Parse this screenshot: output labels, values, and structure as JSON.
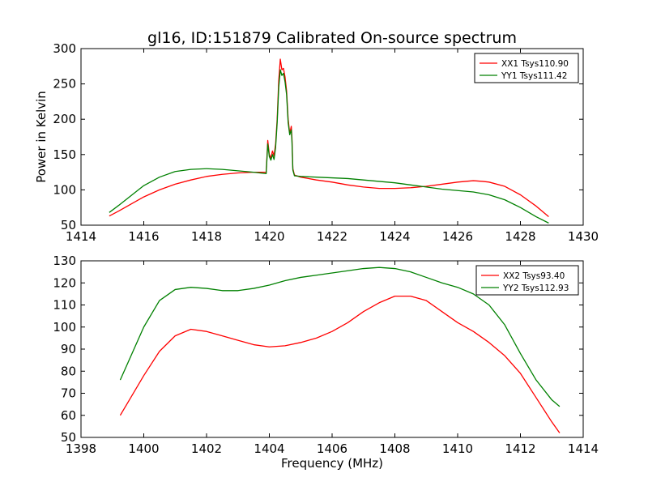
{
  "chart_data": [
    {
      "type": "line",
      "title": "gl16, ID:151879 Calibrated On-source spectrum",
      "xlabel": "",
      "ylabel": "Power in Kelvin",
      "xlim": [
        1414,
        1430
      ],
      "ylim": [
        50,
        300
      ],
      "xticks": [
        1414,
        1416,
        1418,
        1420,
        1422,
        1424,
        1426,
        1428,
        1430
      ],
      "yticks": [
        50,
        100,
        150,
        200,
        250,
        300
      ],
      "legend_position": "top-right",
      "series": [
        {
          "name": "XX1 Tsys110.90",
          "color": "#ff0000",
          "x": [
            1414.9,
            1415.2,
            1415.6,
            1416.0,
            1416.5,
            1417.0,
            1417.5,
            1418.0,
            1418.5,
            1419.0,
            1419.5,
            1419.9,
            1419.95,
            1420.0,
            1420.05,
            1420.1,
            1420.15,
            1420.2,
            1420.25,
            1420.3,
            1420.35,
            1420.4,
            1420.45,
            1420.5,
            1420.55,
            1420.6,
            1420.65,
            1420.7,
            1420.72,
            1420.75,
            1420.8,
            1421.0,
            1421.5,
            1422.0,
            1422.5,
            1423.0,
            1423.5,
            1424.0,
            1424.5,
            1425.0,
            1425.5,
            1426.0,
            1426.5,
            1426.8,
            1427.0,
            1427.5,
            1428.0,
            1428.5,
            1428.9
          ],
          "y": [
            63,
            70,
            80,
            90,
            100,
            108,
            114,
            119,
            122,
            124,
            125,
            125,
            170,
            150,
            145,
            155,
            148,
            165,
            200,
            255,
            285,
            270,
            272,
            260,
            240,
            200,
            180,
            190,
            175,
            130,
            121,
            118,
            114,
            111,
            107,
            104,
            102,
            102,
            103,
            105,
            108,
            111,
            113,
            112,
            111,
            105,
            93,
            77,
            62
          ]
        },
        {
          "name": "YY1 Tsys111.42",
          "color": "#008000",
          "x": [
            1414.9,
            1415.2,
            1415.6,
            1416.0,
            1416.5,
            1417.0,
            1417.5,
            1418.0,
            1418.5,
            1419.0,
            1419.5,
            1419.9,
            1419.95,
            1420.0,
            1420.05,
            1420.1,
            1420.15,
            1420.2,
            1420.25,
            1420.3,
            1420.35,
            1420.4,
            1420.45,
            1420.5,
            1420.55,
            1420.6,
            1420.65,
            1420.7,
            1420.72,
            1420.75,
            1420.8,
            1421.0,
            1421.5,
            1422.0,
            1422.5,
            1423.0,
            1423.5,
            1424.0,
            1424.5,
            1425.0,
            1425.5,
            1426.0,
            1426.5,
            1427.0,
            1427.5,
            1428.0,
            1428.5,
            1428.9
          ],
          "y": [
            68,
            78,
            92,
            106,
            118,
            126,
            129,
            130,
            129,
            127,
            125,
            123,
            165,
            147,
            142,
            150,
            143,
            160,
            195,
            245,
            270,
            262,
            265,
            253,
            235,
            195,
            178,
            185,
            170,
            128,
            120,
            119,
            118,
            117,
            116,
            114,
            112,
            110,
            107,
            104,
            101,
            99,
            97,
            93,
            86,
            75,
            62,
            53
          ]
        }
      ]
    },
    {
      "type": "line",
      "title": "",
      "xlabel": "Frequency (MHz)",
      "ylabel": "",
      "xlim": [
        1398,
        1414
      ],
      "ylim": [
        50,
        130
      ],
      "xticks": [
        1398,
        1400,
        1402,
        1404,
        1406,
        1408,
        1410,
        1412,
        1414
      ],
      "yticks": [
        50,
        60,
        70,
        80,
        90,
        100,
        110,
        120,
        130
      ],
      "legend_position": "top-right",
      "series": [
        {
          "name": "XX2 Tsys93.40",
          "color": "#ff0000",
          "x": [
            1399.25,
            1399.5,
            1400.0,
            1400.5,
            1401.0,
            1401.5,
            1402.0,
            1402.5,
            1403.0,
            1403.5,
            1404.0,
            1404.5,
            1405.0,
            1405.5,
            1406.0,
            1406.5,
            1407.0,
            1407.5,
            1408.0,
            1408.5,
            1409.0,
            1409.5,
            1410.0,
            1410.5,
            1411.0,
            1411.5,
            1412.0,
            1412.5,
            1413.0,
            1413.25
          ],
          "y": [
            60,
            66,
            78,
            89,
            96,
            99,
            98,
            96,
            94,
            92,
            91,
            91.5,
            93,
            95,
            98,
            102,
            107,
            111,
            114,
            114,
            112,
            107,
            102,
            98,
            93,
            87,
            79,
            68,
            57,
            52
          ]
        },
        {
          "name": "YY2 Tsys112.93",
          "color": "#008000",
          "x": [
            1399.25,
            1399.5,
            1400.0,
            1400.5,
            1401.0,
            1401.5,
            1402.0,
            1402.5,
            1403.0,
            1403.5,
            1404.0,
            1404.5,
            1405.0,
            1405.5,
            1406.0,
            1406.5,
            1407.0,
            1407.5,
            1408.0,
            1408.5,
            1409.0,
            1409.5,
            1410.0,
            1410.5,
            1411.0,
            1411.5,
            1412.0,
            1412.5,
            1413.0,
            1413.25
          ],
          "y": [
            76,
            84,
            100,
            112,
            117,
            118,
            117.5,
            116.5,
            116.5,
            117.5,
            119,
            121,
            122.5,
            123.5,
            124.5,
            125.5,
            126.5,
            127,
            126.5,
            125,
            122.5,
            120,
            118,
            115,
            110,
            101,
            88,
            76,
            67,
            64
          ]
        }
      ]
    }
  ]
}
